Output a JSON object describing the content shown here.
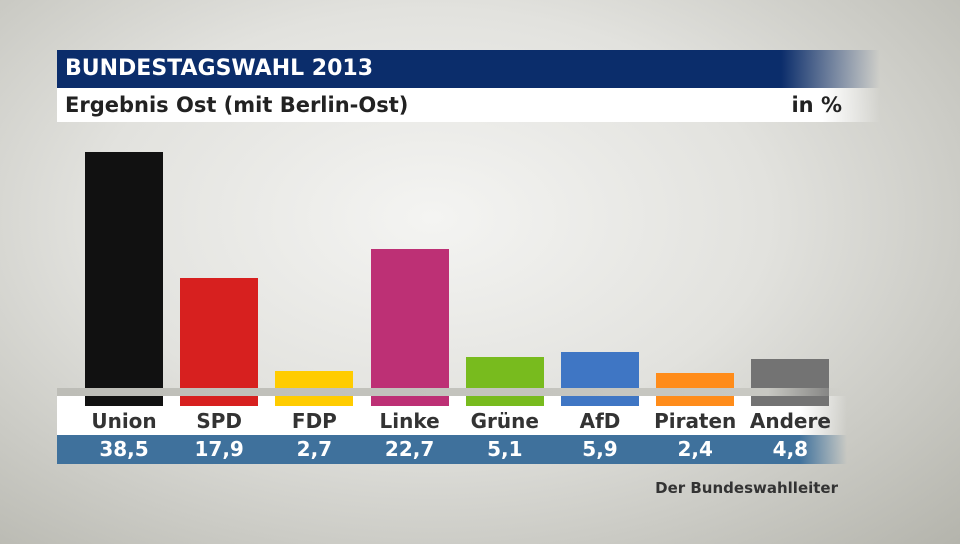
{
  "chart_data": {
    "type": "bar",
    "title": "BUNDESTAGSWAHL 2013",
    "subtitle": "Ergebnis Ost (mit Berlin-Ost)",
    "unit": "in %",
    "categories": [
      "Union",
      "SPD",
      "FDP",
      "Linke",
      "Grüne",
      "AfD",
      "Piraten",
      "Andere"
    ],
    "values": [
      38.5,
      17.9,
      2.7,
      22.7,
      5.1,
      5.9,
      2.4,
      4.8
    ],
    "value_labels": [
      "38,5",
      "17,9",
      "2,7",
      "22,7",
      "5,1",
      "5,9",
      "2,4",
      "4,8"
    ],
    "colors": [
      "#111111",
      "#d7201f",
      "#ffcc00",
      "#bd3075",
      "#78bb1e",
      "#3f76c4",
      "#ff8c1a",
      "#737373"
    ],
    "source": "Der Bundeswahlleiter"
  }
}
